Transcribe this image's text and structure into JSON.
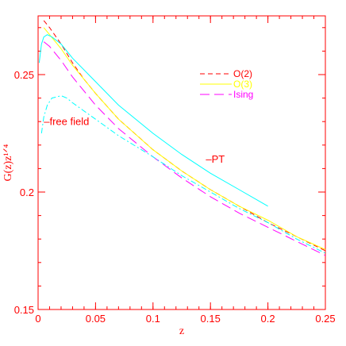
{
  "chart_data": {
    "type": "line",
    "xlabel": "z",
    "ylabel": "G(z)z¹ᐟ⁴",
    "xlim": [
      0,
      0.25
    ],
    "ylim": [
      0.15,
      0.275
    ],
    "xticks": [
      0,
      0.05,
      0.1,
      0.15,
      0.2,
      0.25
    ],
    "xtick_labels": [
      "0",
      "0.05",
      "0.1",
      "0.15",
      "0.2",
      "0.25"
    ],
    "yticks": [
      0.15,
      0.2,
      0.25
    ],
    "ytick_labels": [
      "0.15",
      "0.2",
      "0.25"
    ],
    "grid": false,
    "legend_position": "top-right",
    "colors": {
      "axis": "#ff0000",
      "o2": "#ff0000",
      "o3": "#ffff00",
      "ising": "#ff00ff",
      "cyan": "#00ffff"
    },
    "series": [
      {
        "name": "O(2)",
        "color": "#ff0000",
        "dash": "dash",
        "x": [
          0.005,
          0.01,
          0.02,
          0.03,
          0.04,
          0.05,
          0.07,
          0.1,
          0.125,
          0.15,
          0.175,
          0.2,
          0.225,
          0.25
        ],
        "y": [
          0.273,
          0.27,
          0.263,
          0.255,
          0.248,
          0.242,
          0.231,
          0.218,
          0.209,
          0.201,
          0.194,
          0.187,
          0.181,
          0.175
        ]
      },
      {
        "name": "O(3)",
        "color": "#ffff00",
        "dash": "solid",
        "x": [
          0.005,
          0.01,
          0.02,
          0.03,
          0.04,
          0.05,
          0.07,
          0.1,
          0.125,
          0.15,
          0.175,
          0.2,
          0.225,
          0.25
        ],
        "y": [
          0.27,
          0.267,
          0.261,
          0.254,
          0.248,
          0.242,
          0.231,
          0.218,
          0.209,
          0.201,
          0.194,
          0.188,
          0.181,
          0.1755
        ]
      },
      {
        "name": "Ising",
        "color": "#ff00ff",
        "dash": "longdash",
        "x": [
          0.005,
          0.01,
          0.02,
          0.03,
          0.04,
          0.05,
          0.07,
          0.1,
          0.125,
          0.15,
          0.175,
          0.2,
          0.225,
          0.25
        ],
        "y": [
          0.264,
          0.262,
          0.256,
          0.249,
          0.243,
          0.237,
          0.227,
          0.215,
          0.206,
          0.198,
          0.191,
          0.185,
          0.179,
          0.173
        ]
      },
      {
        "name": "PT",
        "color": "#00ffff",
        "dash": "solid",
        "x": [
          0.001,
          0.003,
          0.005,
          0.008,
          0.012,
          0.02,
          0.03,
          0.05,
          0.07,
          0.1,
          0.125,
          0.15,
          0.175,
          0.2
        ],
        "y": [
          0.255,
          0.263,
          0.266,
          0.267,
          0.266,
          0.263,
          0.257,
          0.247,
          0.237,
          0.225,
          0.216,
          0.208,
          0.201,
          0.194
        ]
      },
      {
        "name": "free field",
        "color": "#00ffff",
        "dash": "dashdot",
        "x": [
          0.003,
          0.005,
          0.008,
          0.012,
          0.02,
          0.025,
          0.03,
          0.05,
          0.07,
          0.1,
          0.125,
          0.15,
          0.175,
          0.2,
          0.225,
          0.25
        ],
        "y": [
          0.225,
          0.232,
          0.237,
          0.24,
          0.241,
          0.24,
          0.238,
          0.231,
          0.224,
          0.215,
          0.207,
          0.2,
          0.193,
          0.187,
          0.18,
          0.174
        ]
      }
    ],
    "legend": [
      {
        "label": "O(2)",
        "color": "#ff0000",
        "dash": "dash"
      },
      {
        "label": "O(3)",
        "color": "#ffff00",
        "dash": "solid"
      },
      {
        "label": "Ising",
        "color": "#ff00ff",
        "dash": "longdash"
      }
    ],
    "annotations": [
      {
        "text": "–free field",
        "x": 0.005,
        "y": 0.2285
      },
      {
        "text": "–PT",
        "x": 0.146,
        "y": 0.2125
      }
    ]
  }
}
